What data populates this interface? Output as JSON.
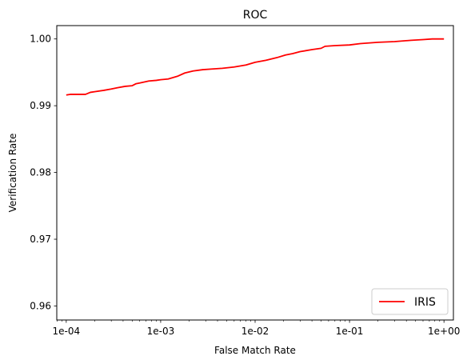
{
  "chart_data": {
    "type": "line",
    "title": "ROC",
    "xlabel": "False Match Rate",
    "ylabel": "Verification Rate",
    "xscale": "log",
    "xlim": [
      7.94e-05,
      1.2589
    ],
    "ylim": [
      0.9579,
      1.002
    ],
    "xticks": [
      {
        "value": 0.0001,
        "label": "1e-04"
      },
      {
        "value": 0.001,
        "label": "1e-03"
      },
      {
        "value": 0.01,
        "label": "1e-02"
      },
      {
        "value": 0.1,
        "label": "1e-01"
      },
      {
        "value": 1,
        "label": "1e+00"
      }
    ],
    "yticks": [
      {
        "value": 0.96,
        "label": "0.96"
      },
      {
        "value": 0.97,
        "label": "0.97"
      },
      {
        "value": 0.98,
        "label": "0.98"
      },
      {
        "value": 0.99,
        "label": "0.99"
      },
      {
        "value": 1.0,
        "label": "1.00"
      }
    ],
    "legend_position": "lower-right",
    "series": [
      {
        "name": "IRIS",
        "color": "#ff0000",
        "x": [
          0.0001,
          0.00011,
          0.00013,
          0.00016,
          0.00018,
          0.0002,
          0.00025,
          0.0003,
          0.00035,
          0.00042,
          0.0005,
          0.00055,
          0.0006,
          0.00075,
          0.0009,
          0.001,
          0.0012,
          0.0015,
          0.0018,
          0.0022,
          0.0028,
          0.0035,
          0.0045,
          0.006,
          0.008,
          0.01,
          0.013,
          0.017,
          0.021,
          0.025,
          0.03,
          0.04,
          0.05,
          0.055,
          0.07,
          0.1,
          0.13,
          0.2,
          0.3,
          0.45,
          0.6,
          0.75,
          1.0
        ],
        "y": [
          0.9916,
          0.9917,
          0.9917,
          0.9917,
          0.992,
          0.9921,
          0.9923,
          0.9925,
          0.9927,
          0.9929,
          0.993,
          0.9933,
          0.9934,
          0.9937,
          0.9938,
          0.9939,
          0.994,
          0.9944,
          0.9949,
          0.9952,
          0.9954,
          0.9955,
          0.9956,
          0.9958,
          0.9961,
          0.9965,
          0.9968,
          0.9972,
          0.9976,
          0.9978,
          0.9981,
          0.9984,
          0.9986,
          0.9989,
          0.999,
          0.9991,
          0.9993,
          0.9995,
          0.9996,
          0.9998,
          0.9999,
          1.0,
          1.0
        ]
      }
    ]
  }
}
